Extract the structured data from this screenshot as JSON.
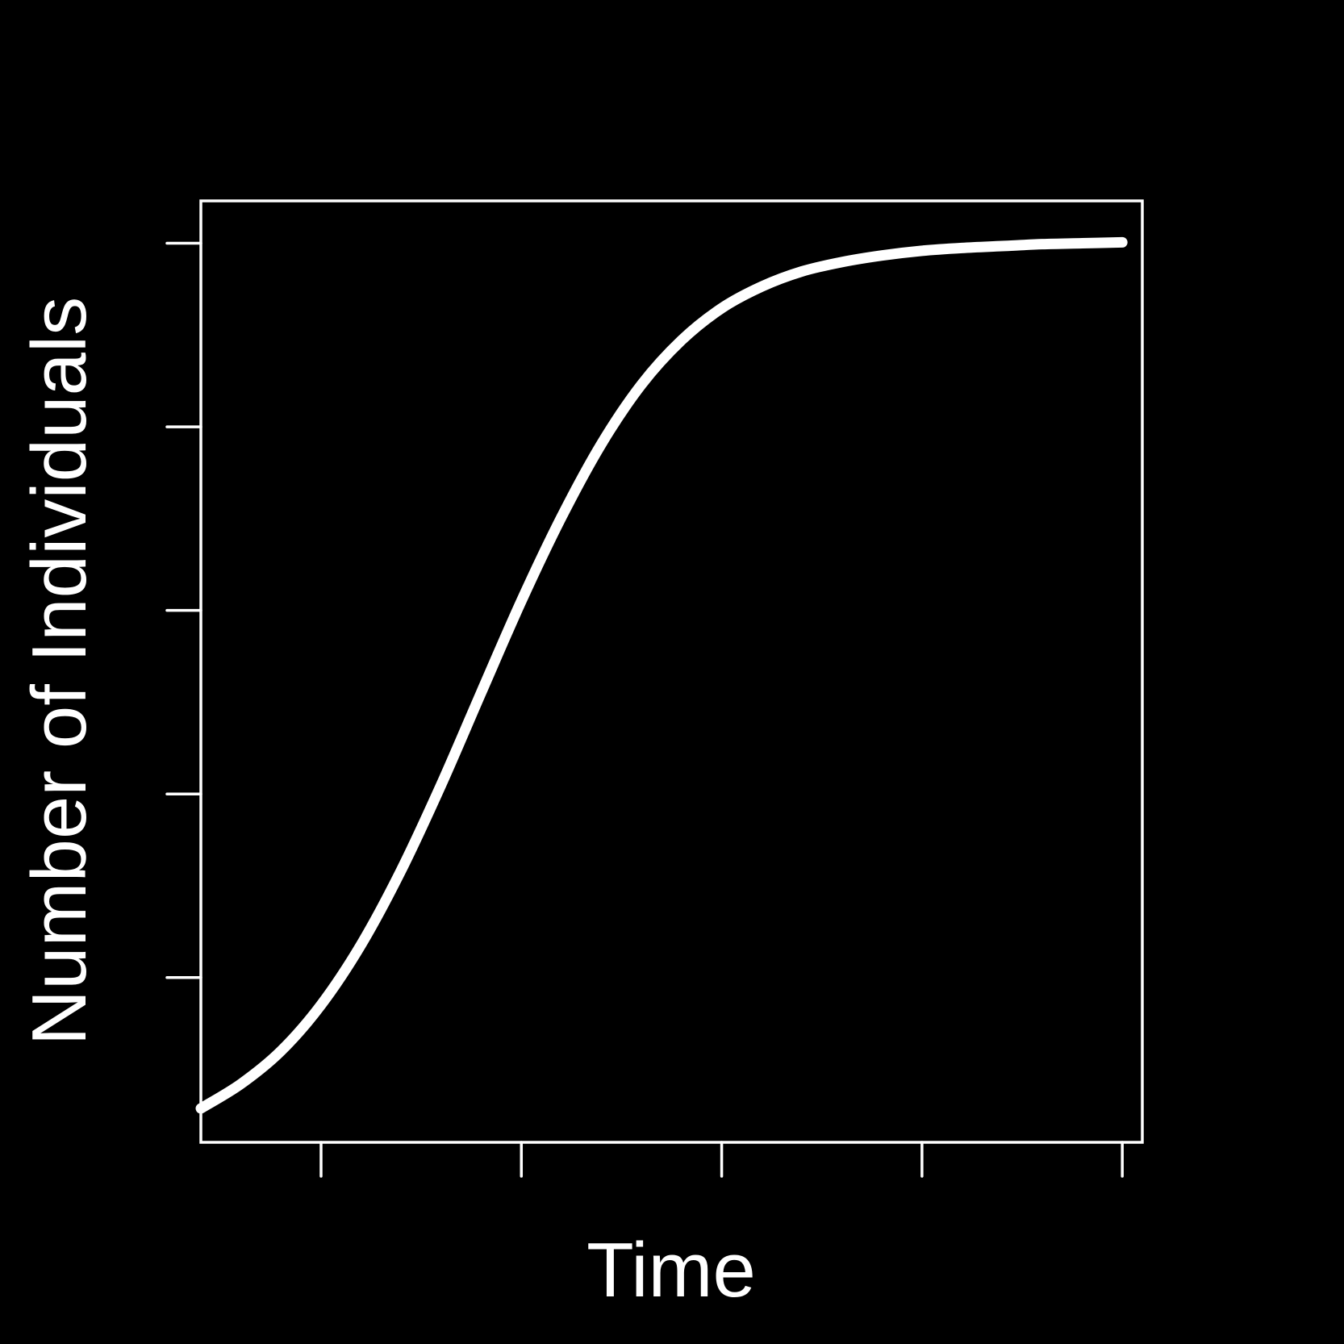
{
  "chart_data": {
    "type": "line",
    "title": "",
    "xlabel": "Time",
    "ylabel": "Number of Individuals",
    "xlim": [
      0,
      23.5
    ],
    "ylim": [
      0,
      1
    ],
    "x_ticks": [
      3,
      8,
      13,
      18,
      23
    ],
    "y_ticks": [
      0.175,
      0.37,
      0.565,
      0.76,
      0.955
    ],
    "x_tick_labels": [],
    "y_tick_labels": [],
    "grid": false,
    "legend": "none",
    "series": [
      {
        "x": [
          0,
          1,
          2,
          3,
          4,
          5,
          6,
          7,
          8,
          9,
          10,
          11,
          12,
          13,
          14,
          15,
          16,
          17,
          18,
          19,
          20,
          21,
          22,
          23
        ],
        "y": [
          0.036,
          0.062,
          0.097,
          0.146,
          0.21,
          0.289,
          0.38,
          0.478,
          0.575,
          0.664,
          0.742,
          0.805,
          0.852,
          0.886,
          0.909,
          0.925,
          0.935,
          0.942,
          0.947,
          0.95,
          0.952,
          0.954,
          0.955,
          0.956
        ]
      }
    ],
    "colors": {
      "background": "#000000",
      "foreground": "#ffffff",
      "line": "#ffffff"
    }
  }
}
